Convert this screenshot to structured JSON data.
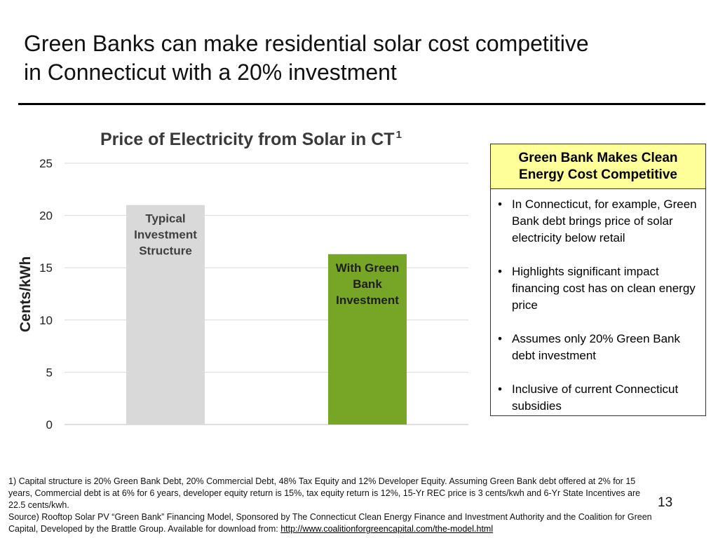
{
  "slide": {
    "title_line1": "Green Banks can make residential solar cost competitive",
    "title_line2": "in Connecticut with a 20% investment",
    "page_number": "13"
  },
  "chart_data": {
    "type": "bar",
    "title": "Price of Electricity from Solar in CT",
    "title_superscript": "1",
    "ylabel": "Cents/kWh",
    "xlabel": "",
    "ylim": [
      0,
      25
    ],
    "yticks": [
      0,
      5,
      10,
      15,
      20,
      25
    ],
    "grid": true,
    "categories": [
      "Typical Investment Structure",
      "With Green Bank Investment"
    ],
    "bar_label_lines": [
      [
        "Typical",
        "Investment",
        "Structure"
      ],
      [
        "With Green",
        "Bank",
        "Investment"
      ]
    ],
    "values": [
      21,
      16.3
    ],
    "colors": [
      "#d9d9d9",
      "#77a627"
    ],
    "label_colors": [
      "#3f3f3f",
      "#1e1e1e"
    ]
  },
  "panel": {
    "header": "Green Bank Makes Clean Energy Cost Competitive",
    "bullets": [
      "In Connecticut, for example, Green Bank debt brings price of solar electricity below retail",
      "Highlights significant impact financing cost has on clean energy price",
      "Assumes only 20% Green Bank debt investment",
      "Inclusive of current Connecticut subsidies"
    ]
  },
  "footnotes": {
    "note1": "1) Capital structure is 20% Green Bank Debt, 20% Commercial Debt, 48% Tax Equity and 12% Developer Equity. Assuming Green Bank debt offered at 2% for 15 years, Commercial debt is at 6% for 6 years, developer equity return is 15%, tax equity return is 12%, 15-Yr REC price is 3 cents/kwh and 6-Yr State Incentives are 22.5 cents/kwh.",
    "source": "Source) Rooftop Solar PV “Green Bank” Financing Model, Sponsored by The Connecticut Clean Energy Finance and Investment Authority and the Coalition for Green Capital, Developed by the Brattle Group. Available for download from: ",
    "link": "http://www.coalitionforgreencapital.com/the-model.html"
  }
}
